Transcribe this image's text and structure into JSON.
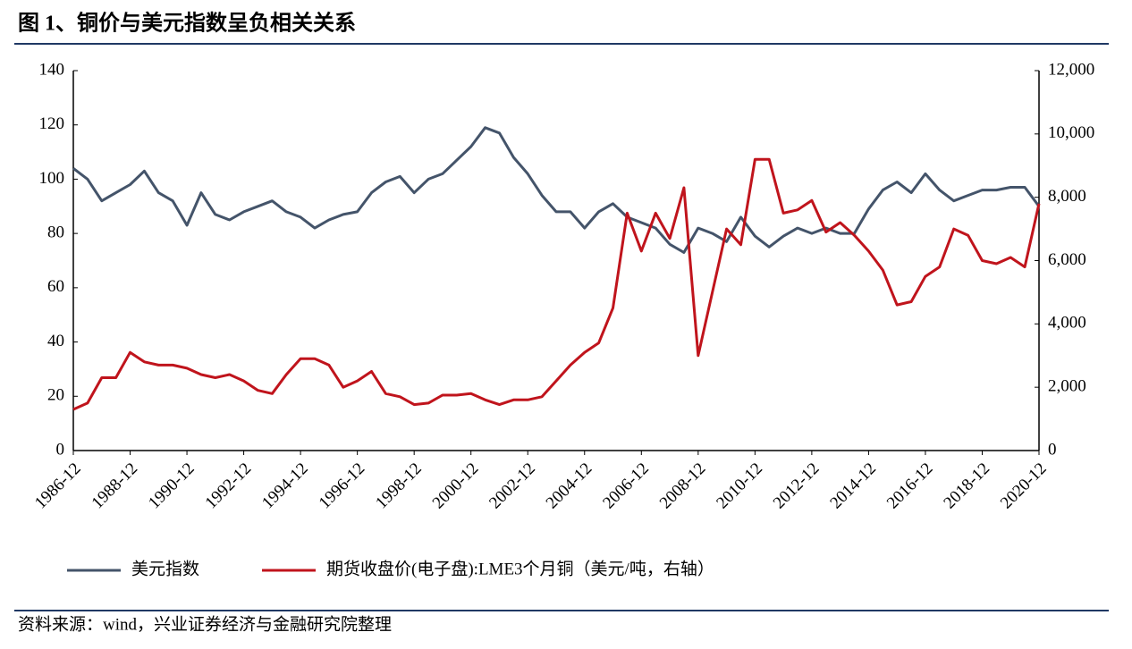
{
  "chart_data": {
    "type": "line",
    "title": "图 1、铜价与美元指数呈负相关关系",
    "source": "资料来源：wind，兴业证券经济与金融研究院整理",
    "x": [
      "1986-12",
      "1987-06",
      "1987-12",
      "1988-06",
      "1988-12",
      "1989-06",
      "1989-12",
      "1990-06",
      "1990-12",
      "1991-06",
      "1991-12",
      "1992-06",
      "1992-12",
      "1993-06",
      "1993-12",
      "1994-06",
      "1994-12",
      "1995-06",
      "1995-12",
      "1996-06",
      "1996-12",
      "1997-06",
      "1997-12",
      "1998-06",
      "1998-12",
      "1999-06",
      "1999-12",
      "2000-06",
      "2000-12",
      "2001-06",
      "2001-12",
      "2002-06",
      "2002-12",
      "2003-06",
      "2003-12",
      "2004-06",
      "2004-12",
      "2005-06",
      "2005-12",
      "2006-06",
      "2006-12",
      "2007-06",
      "2007-12",
      "2008-06",
      "2008-12",
      "2009-06",
      "2009-12",
      "2010-06",
      "2010-12",
      "2011-06",
      "2011-12",
      "2012-06",
      "2012-12",
      "2013-06",
      "2013-12",
      "2014-06",
      "2014-12",
      "2015-06",
      "2015-12",
      "2016-06",
      "2016-12",
      "2017-06",
      "2017-12",
      "2018-06",
      "2018-12",
      "2019-06",
      "2019-12",
      "2020-06",
      "2020-12"
    ],
    "series": [
      {
        "name": "美元指数",
        "color": "#44546a",
        "axis": "y",
        "values": [
          104,
          100,
          92,
          95,
          98,
          103,
          95,
          92,
          83,
          95,
          87,
          85,
          88,
          90,
          92,
          88,
          86,
          82,
          85,
          87,
          88,
          95,
          99,
          101,
          95,
          100,
          102,
          107,
          112,
          119,
          117,
          108,
          102,
          94,
          88,
          88,
          82,
          88,
          91,
          86,
          84,
          82,
          76,
          73,
          82,
          80,
          77,
          86,
          79,
          75,
          79,
          82,
          80,
          82,
          80,
          80,
          89,
          96,
          99,
          95,
          102,
          96,
          92,
          94,
          96,
          96,
          97,
          97,
          90
        ]
      },
      {
        "name": "期货收盘价(电子盘):LME3个月铜（美元/吨，右轴）",
        "color": "#c0141c",
        "axis": "y2",
        "values": [
          1300,
          1500,
          2300,
          2300,
          3100,
          2800,
          2700,
          2700,
          2600,
          2400,
          2300,
          2400,
          2200,
          1900,
          1800,
          2400,
          2900,
          2900,
          2700,
          2000,
          2200,
          2500,
          1800,
          1700,
          1450,
          1500,
          1750,
          1750,
          1800,
          1600,
          1450,
          1600,
          1600,
          1700,
          2200,
          2700,
          3100,
          3400,
          4500,
          7500,
          6300,
          7500,
          6700,
          8300,
          3000,
          5000,
          7000,
          6500,
          9200,
          9200,
          7500,
          7600,
          7900,
          6900,
          7200,
          6800,
          6300,
          5700,
          4600,
          4700,
          5500,
          5800,
          7000,
          6800,
          6000,
          5900,
          6100,
          5800,
          7800
        ]
      }
    ],
    "xlim": [
      "1986-12",
      "2020-12"
    ],
    "xticks": [
      "1986-12",
      "1988-12",
      "1990-12",
      "1992-12",
      "1994-12",
      "1996-12",
      "1998-12",
      "2000-12",
      "2002-12",
      "2004-12",
      "2006-12",
      "2008-12",
      "2010-12",
      "2012-12",
      "2014-12",
      "2016-12",
      "2018-12",
      "2020-12"
    ],
    "ylim": [
      0,
      140
    ],
    "yticks": [
      0,
      20,
      40,
      60,
      80,
      100,
      120,
      140
    ],
    "y2lim": [
      0,
      12000
    ],
    "y2ticks": [
      0,
      {
        "value": 2000,
        "label": "2,000"
      },
      {
        "value": 4000,
        "label": "4,000"
      },
      {
        "value": 6000,
        "label": "6,000"
      },
      {
        "value": 8000,
        "label": "8,000"
      },
      {
        "value": 10000,
        "label": "10,000"
      },
      {
        "value": 12000,
        "label": "12,000"
      }
    ]
  }
}
